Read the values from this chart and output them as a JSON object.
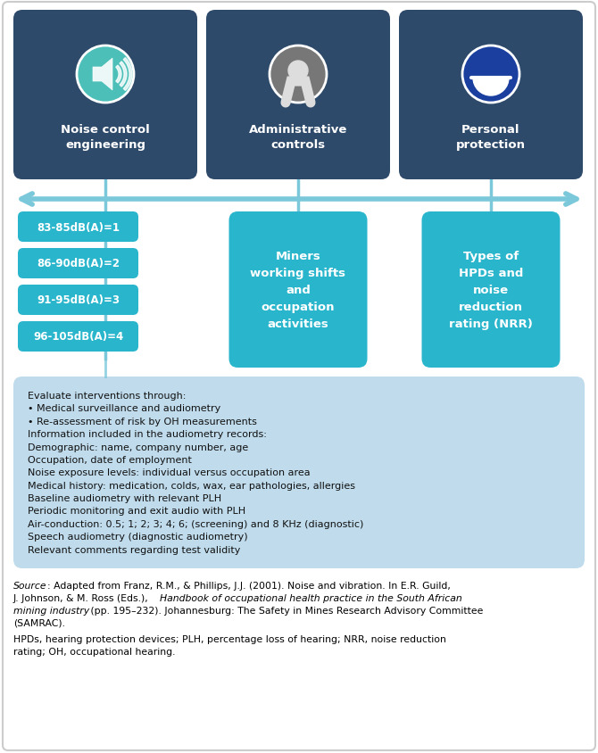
{
  "bg_color": "#ffffff",
  "dark_blue": "#2e4a6a",
  "light_blue_box": "#b8d8ea",
  "cyan_box": "#29b5cc",
  "arrow_color": "#7ac8da",
  "db_labels": [
    "83-85dB(A)=1",
    "86-90dB(A)=2",
    "91-95dB(A)=3",
    "96-105dB(A)=4"
  ],
  "top_labels": [
    "Noise control\nengineering",
    "Administrative\ncontrols",
    "Personal\nprotection"
  ],
  "icon_colors": [
    "#4bbfb8",
    "#777777",
    "#1a3f9e"
  ],
  "middle_box1": "Miners\nworking shifts\nand\noccupation\nactivities",
  "middle_box2": "Types of\nHPDs and\nnoise\nreduction\nrating (NRR)",
  "bottom_lines": [
    "Evaluate interventions through:",
    "• Medical surveillance and audiometry",
    "• Re-assessment of risk by OH measurements",
    "Information included in the audiometry records:",
    "Demographic: name, company number, age",
    "Occupation, date of employment",
    "Noise exposure levels: individual versus occupation area",
    "Medical history: medication, colds, wax, ear pathologies, allergies",
    "Baseline audiometry with relevant PLH",
    "Periodic monitoring and exit audio with PLH",
    "Air-conduction: 0.5; 1; 2; 3; 4; 6; (screening) and 8 KHz (diagnostic)",
    "Speech audiometry (diagnostic audiometry)",
    "Relevant comments regarding test validity"
  ],
  "border_color": "#cccccc",
  "text_color": "#111111"
}
